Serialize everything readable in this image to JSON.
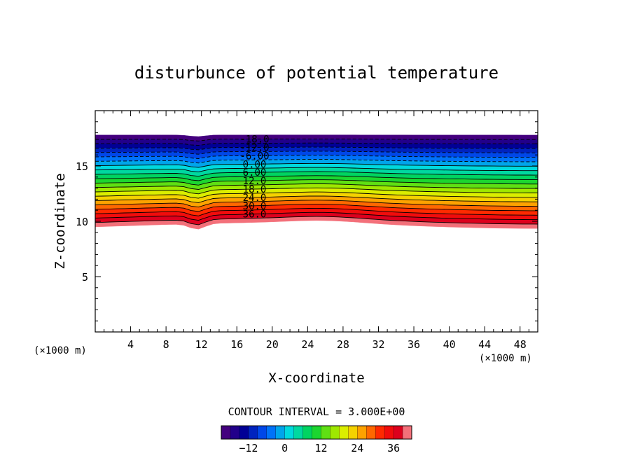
{
  "chart_data": {
    "type": "contour",
    "title": "disturbunce of potential temperature",
    "xlabel": "X-coordinate",
    "ylabel": "Z-coordinate",
    "x_unit_left": "(×1000 m)",
    "x_unit_right": "(×1000 m)",
    "xlim": [
      0,
      50
    ],
    "ylim": [
      0,
      20
    ],
    "x_ticks": [
      "4",
      "8",
      "12",
      "16",
      "20",
      "24",
      "28",
      "32",
      "36",
      "40",
      "44",
      "48"
    ],
    "y_ticks": [
      "5",
      "10",
      "15"
    ],
    "contour_interval_text": "CONTOUR INTERVAL = 3.000E+00",
    "contour_labels": [
      "-18.0",
      "-12.0",
      "-6.00",
      "0.00",
      "6.00",
      "12.0",
      "18.0",
      "24.0",
      "30.0",
      "36.0"
    ],
    "colorbar": {
      "min": -21,
      "max": 42,
      "interval": 3,
      "tick_labels": [
        "−12",
        "0",
        "12",
        "24",
        "36"
      ]
    },
    "field": {
      "top_z": 17.8,
      "bottom_z": 9.6,
      "top_value": -21,
      "bottom_value": 42,
      "dip_center_x": 11.5,
      "dip_depth": 0.35
    }
  }
}
